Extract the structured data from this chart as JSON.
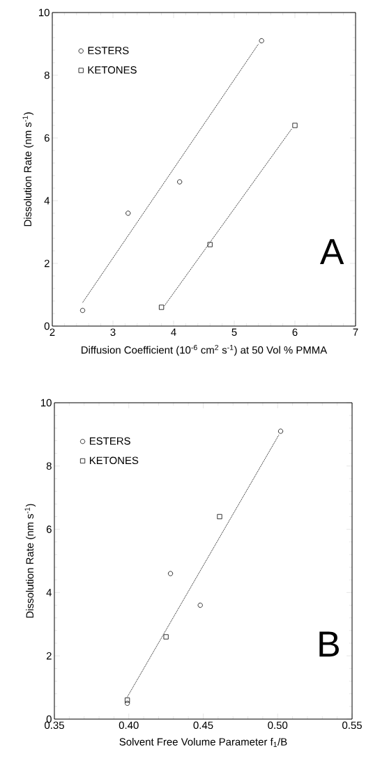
{
  "chart_data": [
    {
      "type": "scatter",
      "xlabel": "Diffusion Coefficient (10$^{-6}$ cm$^{2}$ s$^{-1}$) at 50 Vol % PMMA",
      "ylabel": "Dissolution Rate (nm s$^{-1}$)",
      "xlim": [
        2,
        7
      ],
      "ylim": [
        0,
        10
      ],
      "xticks": [
        2,
        3,
        4,
        5,
        6,
        7
      ],
      "yticks": [
        0,
        2,
        4,
        6,
        8,
        10
      ],
      "legend": "top left",
      "annotations": [
        "A"
      ],
      "series": [
        {
          "name": "ESTERS",
          "marker": "circle",
          "color": "#000000",
          "x": [
            2.5,
            3.25,
            4.1,
            5.45
          ],
          "values": [
            0.5,
            3.6,
            4.6,
            9.1
          ]
        },
        {
          "name": "KETONES",
          "marker": "square",
          "color": "#000000",
          "x": [
            3.8,
            4.6,
            6.0
          ],
          "values": [
            0.6,
            2.6,
            6.4
          ]
        },
        {
          "type": "line",
          "line_style": "dotted",
          "color": "#000000",
          "x": [
            2.5,
            5.4
          ],
          "values": [
            0.75,
            9.0
          ]
        },
        {
          "type": "line",
          "line_style": "dotted",
          "color": "#000000",
          "x": [
            3.85,
            5.95
          ],
          "values": [
            0.65,
            6.3
          ]
        }
      ]
    },
    {
      "type": "scatter",
      "xlabel": "Solvent Free Volume Parameter  f$_{1}$/B",
      "ylabel": "Dissolution Rate (nm s$^{-1}$)",
      "xlim": [
        0.35,
        0.55
      ],
      "ylim": [
        0,
        10
      ],
      "xticks": [
        {
          "value": 0.35,
          "label": "0.35"
        },
        {
          "value": 0.4,
          "label": "0.40"
        },
        {
          "value": 0.45,
          "label": "0.45"
        },
        {
          "value": 0.5,
          "label": "0.50"
        },
        {
          "value": 0.55,
          "label": "0.55"
        }
      ],
      "yticks": [
        0,
        2,
        4,
        6,
        8,
        10
      ],
      "legend": "top left",
      "annotations": [
        "B"
      ],
      "series": [
        {
          "name": "ESTERS",
          "marker": "circle",
          "color": "#000000",
          "x": [
            0.399,
            0.428,
            0.448,
            0.502
          ],
          "values": [
            0.5,
            4.6,
            3.6,
            9.1
          ]
        },
        {
          "name": "KETONES",
          "marker": "square",
          "color": "#000000",
          "x": [
            0.399,
            0.425,
            0.461
          ],
          "values": [
            0.6,
            2.6,
            6.4
          ]
        },
        {
          "type": "line",
          "line_style": "dotted",
          "color": "#000000",
          "x": [
            0.399,
            0.501
          ],
          "values": [
            0.7,
            9.0
          ]
        }
      ]
    }
  ]
}
